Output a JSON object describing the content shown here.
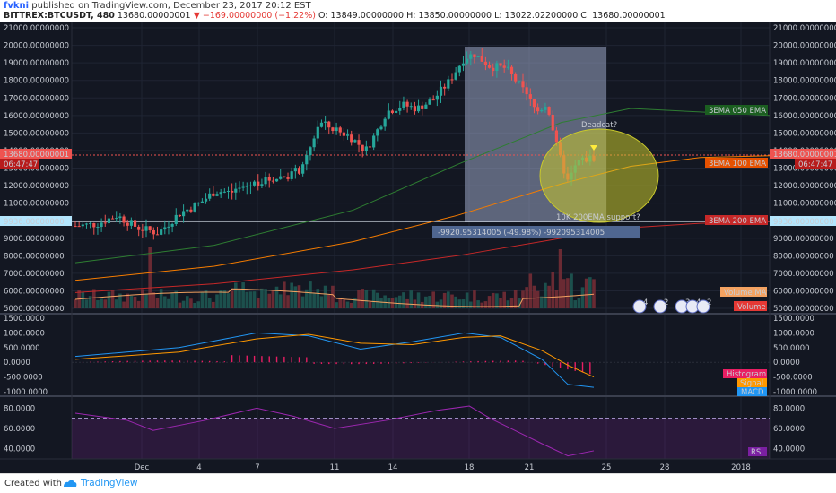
{
  "header": {
    "user": "fvkni",
    "published": "published on TradingView.com, December 23, 2017 20:12 EST",
    "symbol": "BITTREX:BTCUSDT, 480",
    "last": "13680.00000001",
    "change": "▼ −169.00000000 (−1.22%)",
    "open": "O: 13849.00000000",
    "high": "H: 13850.00000000",
    "low": "L: 13022.02200000",
    "close": "C: 13680.00000001"
  },
  "price_axis": {
    "ticks": [
      "21000.00000000",
      "20000.00000000",
      "19000.00000000",
      "18000.00000000",
      "17000.00000000",
      "16000.00000000",
      "15000.00000000",
      "14000.00000000",
      "13000.00000000",
      "12000.00000000",
      "11000.00000000",
      "10000.00000000",
      "9000.00000000",
      "8000.00000000",
      "7000.00000000",
      "6000.00000000",
      "5000.00000000"
    ]
  },
  "macd_axis": {
    "ticks": [
      "1500.0000",
      "1000.0000",
      "500.0000",
      "0.0000",
      "-500.0000",
      "-1000.0000"
    ]
  },
  "rsi_axis": {
    "ticks": [
      "80.0000",
      "60.0000",
      "40.0000"
    ]
  },
  "time_axis": {
    "labels": [
      "Dec",
      "4",
      "7",
      "11",
      "14",
      "18",
      "21",
      "25",
      "28",
      "2018"
    ]
  },
  "markers": {
    "current_price": "13680.00000001",
    "countdown": "06:47:47",
    "support_price": "9936.00000000"
  },
  "ema_labels": {
    "ema50": "3EMA 050 EMA",
    "ema100": "3EMA 100 EMA",
    "ema200": "3EMA 200 EMA"
  },
  "annotations": {
    "deadcat": "Deadcat?",
    "support": "10K 200EMA support?",
    "measure": "-9920.95314005 (-49.98%) -992095314005"
  },
  "panel_labels": {
    "volume_ma": "Volume MA",
    "volume": "Volume",
    "histogram": "Histogram",
    "signal": "Signal",
    "macd": "MACD",
    "rsi": "RSI"
  },
  "event_badges": [
    "4",
    "2",
    "3",
    "4",
    "2"
  ],
  "colors": {
    "background": "#131722",
    "grid": "#1f2433",
    "up": "#26a69a",
    "down": "#ef5350",
    "ema50": "#2e7d32",
    "ema100": "#f57c00",
    "ema200": "#c62828",
    "macd": "#2196f3",
    "signal": "#ff9800",
    "histogram": "#e91e63",
    "rsi": "#9c27b0",
    "measure_box": "#9aa6c4",
    "deadcat_circle": "#c9c82c"
  },
  "footer": {
    "created_with": "Created with",
    "brand": "TradingView"
  }
}
